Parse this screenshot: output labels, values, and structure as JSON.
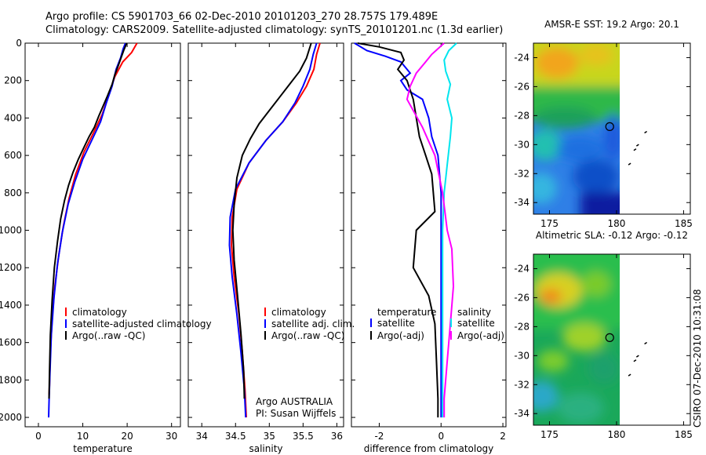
{
  "figure": {
    "title_line1": "Argo profile: CS 5901703_66 02-Dec-2010 20101203_270 28.757S 179.489E",
    "title_line2": "Climatology: CARS2009. Satellite-adjusted climatology: synTS_20101201.nc (1.3d earlier)",
    "side_label": "CSIRO 07-Dec-2010 10:31:08",
    "argo_label_1": "Argo AUSTRALIA",
    "argo_label_2": "PI: Susan Wijffels"
  },
  "chart_data": [
    {
      "type": "line",
      "panel": "temperature",
      "xlabel": "temperature",
      "ylabel": "",
      "xlim": [
        -3,
        32
      ],
      "ylim": [
        0,
        2050
      ],
      "y_reversed": true,
      "xticks": [
        "0",
        "10",
        "20",
        "30"
      ],
      "yticks": [
        "0",
        "200",
        "400",
        "600",
        "800",
        "1000",
        "1200",
        "1400",
        "1600",
        "1800",
        "2000"
      ],
      "legend": [
        "climatology",
        "satellite-adjusted climatology",
        "Argo(..raw -QC)"
      ],
      "series": [
        {
          "name": "climatology",
          "color": "#ff0000",
          "x": [
            22.2,
            21.0,
            19.0,
            17.2,
            15.8,
            14.4,
            12.4,
            10.3,
            8.4,
            6.9,
            5.6,
            4.6,
            3.7,
            3.1,
            2.7,
            2.5,
            2.4
          ],
          "y": [
            0,
            50,
            100,
            180,
            280,
            380,
            480,
            580,
            700,
            830,
            980,
            1130,
            1300,
            1470,
            1650,
            1830,
            1880
          ]
        },
        {
          "name": "satellite-adjusted climatology",
          "color": "#0000ff",
          "x": [
            19.6,
            19.1,
            18.5,
            17.5,
            16.6,
            15.3,
            14.0,
            12.0,
            10.0,
            8.2,
            6.7,
            5.4,
            4.3,
            3.5,
            2.9,
            2.6,
            2.4,
            2.3
          ],
          "y": [
            0,
            30,
            80,
            140,
            230,
            320,
            420,
            520,
            620,
            740,
            860,
            1010,
            1180,
            1360,
            1560,
            1760,
            1920,
            2000
          ]
        },
        {
          "name": "Argo(..raw -QC)",
          "color": "#000000",
          "x": [
            19.9,
            19.2,
            18.6,
            18.0,
            17.2,
            16.6,
            15.6,
            14.7,
            13.6,
            12.6,
            11.4,
            10.2,
            9.0,
            7.8,
            6.8,
            5.9,
            5.0,
            4.3,
            3.6,
            3.1,
            2.7,
            2.5,
            2.4
          ],
          "y": [
            0,
            40,
            80,
            120,
            170,
            220,
            280,
            330,
            390,
            450,
            500,
            560,
            620,
            690,
            760,
            840,
            940,
            1060,
            1200,
            1370,
            1560,
            1760,
            1900
          ]
        }
      ]
    },
    {
      "type": "line",
      "panel": "salinity",
      "xlabel": "salinity",
      "ylabel": "",
      "xlim": [
        33.8,
        36.1
      ],
      "ylim": [
        0,
        2050
      ],
      "y_reversed": true,
      "xticks": [
        "34",
        "34.5",
        "35",
        "35.5",
        "36"
      ],
      "legend": [
        "climatology",
        "satellite adj. clim.",
        "Argo(..raw -QC)"
      ],
      "series": [
        {
          "name": "climatology",
          "color": "#ff0000",
          "x": [
            35.75,
            35.7,
            35.66,
            35.55,
            35.4,
            35.2,
            34.95,
            34.7,
            34.52,
            34.45,
            34.44,
            34.48,
            34.55,
            34.6,
            34.64,
            34.66
          ],
          "y": [
            0,
            60,
            140,
            230,
            320,
            420,
            520,
            640,
            780,
            930,
            1080,
            1250,
            1450,
            1650,
            1850,
            2000
          ]
        },
        {
          "name": "satellite adj. clim.",
          "color": "#0000ff",
          "x": [
            35.7,
            35.65,
            35.6,
            35.5,
            35.38,
            35.2,
            34.95,
            34.7,
            34.5,
            34.42,
            34.41,
            34.45,
            34.52,
            34.58,
            34.63,
            34.65
          ],
          "y": [
            0,
            60,
            140,
            230,
            320,
            420,
            520,
            640,
            780,
            930,
            1080,
            1250,
            1450,
            1650,
            1850,
            2000
          ]
        },
        {
          "name": "Argo(..raw -QC)",
          "color": "#000000",
          "x": [
            35.62,
            35.55,
            35.45,
            35.3,
            35.15,
            35.0,
            34.85,
            34.72,
            34.6,
            34.52,
            34.48,
            34.46,
            34.48,
            34.53,
            34.58,
            34.62,
            34.63
          ],
          "y": [
            0,
            80,
            150,
            220,
            290,
            360,
            430,
            510,
            600,
            720,
            860,
            1000,
            1160,
            1350,
            1550,
            1750,
            1900
          ]
        }
      ]
    },
    {
      "type": "line",
      "panel": "difference",
      "xlabel": "difference from climatology",
      "ylabel": "",
      "xlim": [
        -2.9,
        2.1
      ],
      "ylim": [
        0,
        2050
      ],
      "y_reversed": true,
      "xticks": [
        "-2",
        "0",
        "2"
      ],
      "legend_left_header": "temperature",
      "legend_right_header": "salinity",
      "legend": [
        "satellite",
        "Argo(-adj)",
        "satellite",
        "Argo(-adj)"
      ],
      "series": [
        {
          "name": "satellite",
          "group": "temperature",
          "color": "#0000ff",
          "x": [
            -2.8,
            -2.4,
            -1.8,
            -1.3,
            -1.0,
            -1.3,
            -1.1,
            -0.6,
            -0.4,
            -0.3,
            -0.1,
            0.0,
            0.0,
            0.0,
            0.0,
            0.0
          ],
          "y": [
            0,
            40,
            70,
            100,
            160,
            200,
            250,
            300,
            400,
            500,
            600,
            800,
            1000,
            1300,
            1600,
            2000
          ]
        },
        {
          "name": "Argo(-adj)",
          "group": "temperature",
          "color": "#000000",
          "x": [
            -2.7,
            -2.0,
            -1.3,
            -1.2,
            -1.4,
            -1.1,
            -0.9,
            -0.8,
            -0.7,
            -0.5,
            -0.3,
            -0.2,
            -0.8,
            -0.9,
            -0.4,
            -0.2,
            -0.15,
            -0.1,
            -0.1
          ],
          "y": [
            0,
            20,
            50,
            90,
            140,
            200,
            300,
            400,
            500,
            600,
            700,
            900,
            1000,
            1200,
            1350,
            1500,
            1700,
            1900,
            2000
          ]
        },
        {
          "name": "satellite",
          "group": "salinity",
          "color": "#00e5ee",
          "x": [
            0.5,
            0.25,
            0.1,
            0.15,
            0.3,
            0.2,
            0.35,
            0.3,
            0.2,
            0.1,
            0.05,
            0.05,
            0.05,
            0.05
          ],
          "y": [
            0,
            40,
            90,
            150,
            220,
            300,
            400,
            500,
            650,
            800,
            1000,
            1300,
            1600,
            2000
          ]
        },
        {
          "name": "Argo(-adj)",
          "group": "salinity",
          "color": "#ff00ff",
          "x": [
            0.1,
            -0.3,
            -0.5,
            -0.8,
            -1.0,
            -1.1,
            -0.6,
            -0.2,
            0.05,
            0.2,
            0.35,
            0.4,
            0.3,
            0.2,
            0.1,
            0.1
          ],
          "y": [
            0,
            60,
            100,
            160,
            230,
            300,
            450,
            600,
            800,
            1000,
            1100,
            1300,
            1500,
            1700,
            1900,
            2000
          ]
        }
      ]
    },
    {
      "type": "heatmap",
      "panel": "sst_map",
      "title": "AMSR-E SST: 19.2   Argo: 20.1",
      "xlim": [
        173.8,
        185.5
      ],
      "ylim": [
        -34.8,
        -23.0
      ],
      "xticks": [
        "175",
        "180",
        "185"
      ],
      "yticks": [
        "-24",
        "-26",
        "-28",
        "-30",
        "-32",
        "-34"
      ],
      "marker": {
        "lon": 179.489,
        "lat": -28.757
      }
    },
    {
      "type": "heatmap",
      "panel": "sla_map",
      "title": "Altimetric SLA: -0.12   Argo: -0.12",
      "xlim": [
        173.8,
        185.5
      ],
      "ylim": [
        -34.8,
        -23.0
      ],
      "xticks": [
        "175",
        "180",
        "185"
      ],
      "yticks": [
        "-24",
        "-26",
        "-28",
        "-30",
        "-32",
        "-34"
      ],
      "marker": {
        "lon": 179.489,
        "lat": -28.757
      }
    }
  ]
}
